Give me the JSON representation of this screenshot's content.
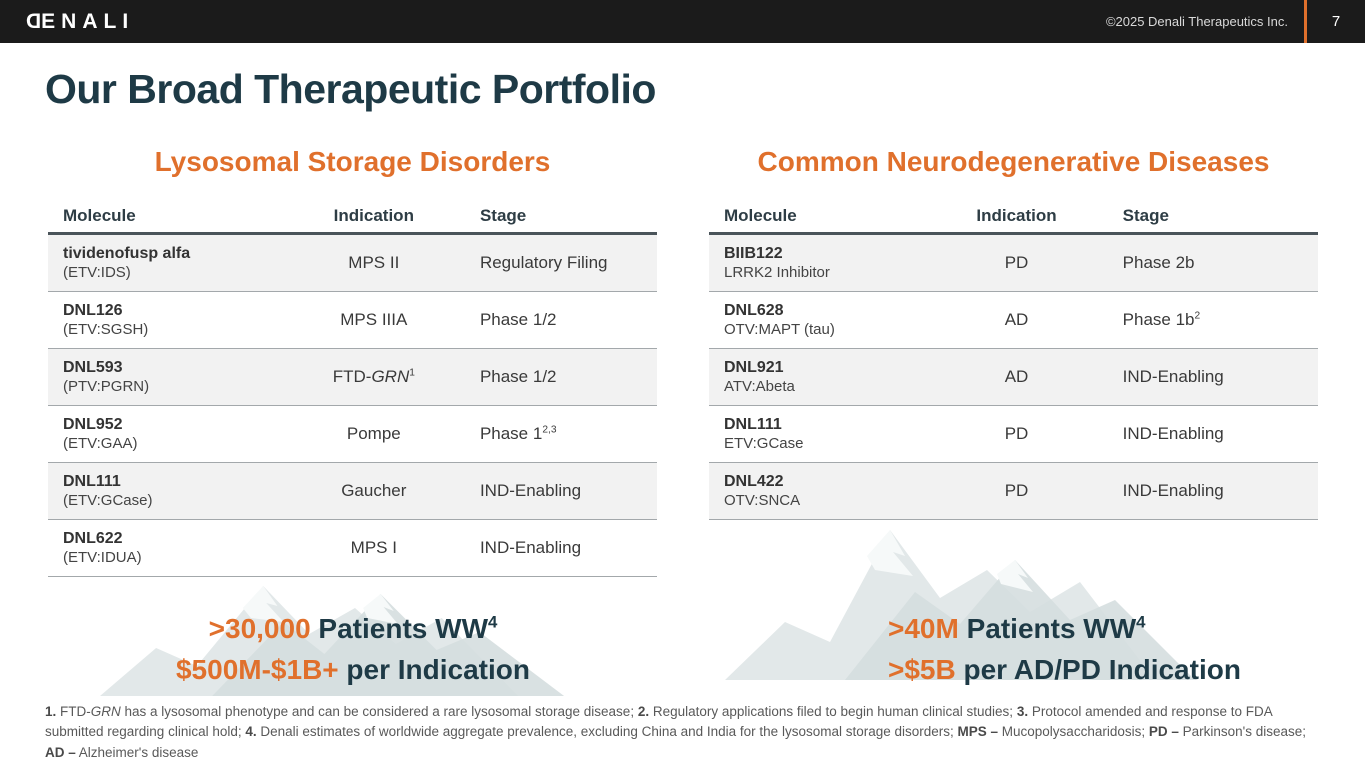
{
  "colors": {
    "accent": "#E0702C",
    "dark_teal": "#1E3A46",
    "topbar": "#1B1B1B",
    "row_alt": "#F2F2F2"
  },
  "header": {
    "logo_first": "D",
    "logo_rest": "ENALI",
    "copyright": "©2025 Denali Therapeutics Inc.",
    "page_number": "7"
  },
  "title": "Our Broad Therapeutic Portfolio",
  "sections": [
    {
      "heading": "Lysosomal Storage Disorders",
      "columns": [
        "Molecule",
        "Indication",
        "Stage"
      ],
      "rows": [
        {
          "name": "tividenofusp alfa",
          "sub": "(ETV:IDS)",
          "indication": [
            {
              "t": "MPS II"
            }
          ],
          "stage": [
            {
              "t": "Regulatory Filing"
            }
          ]
        },
        {
          "name": "DNL126",
          "sub": "(ETV:SGSH)",
          "indication": [
            {
              "t": "MPS IIIA"
            }
          ],
          "stage": [
            {
              "t": "Phase 1/2"
            }
          ]
        },
        {
          "name": "DNL593",
          "sub": "(PTV:PGRN)",
          "indication": [
            {
              "t": "FTD-"
            },
            {
              "t": "GRN",
              "i": true
            },
            {
              "t": "1",
              "sup": true
            }
          ],
          "stage": [
            {
              "t": "Phase 1/2"
            }
          ]
        },
        {
          "name": "DNL952",
          "sub": "(ETV:GAA)",
          "indication": [
            {
              "t": "Pompe"
            }
          ],
          "stage": [
            {
              "t": "Phase 1"
            },
            {
              "t": "2,3",
              "sup": true
            }
          ]
        },
        {
          "name": "DNL111",
          "sub": "(ETV:GCase)",
          "indication": [
            {
              "t": "Gaucher"
            }
          ],
          "stage": [
            {
              "t": "IND-Enabling"
            }
          ]
        },
        {
          "name": "DNL622",
          "sub": "(ETV:IDUA)",
          "indication": [
            {
              "t": "MPS I"
            }
          ],
          "stage": [
            {
              "t": "IND-Enabling"
            }
          ]
        }
      ],
      "stats": [
        {
          "accent": ">30,000",
          "rest": " Patients WW",
          "sup": "4"
        },
        {
          "accent": "$500M-$1B+",
          "rest": " per Indication",
          "sup": ""
        }
      ]
    },
    {
      "heading": "Common Neurodegenerative Diseases",
      "columns": [
        "Molecule",
        "Indication",
        "Stage"
      ],
      "rows": [
        {
          "name": "BIIB122",
          "sub": "LRRK2 Inhibitor",
          "indication": [
            {
              "t": "PD"
            }
          ],
          "stage": [
            {
              "t": "Phase 2b"
            }
          ]
        },
        {
          "name": "DNL628",
          "sub": "OTV:MAPT (tau)",
          "indication": [
            {
              "t": "AD"
            }
          ],
          "stage": [
            {
              "t": "Phase 1b"
            },
            {
              "t": "2",
              "sup": true
            }
          ]
        },
        {
          "name": "DNL921",
          "sub": "ATV:Abeta",
          "indication": [
            {
              "t": "AD"
            }
          ],
          "stage": [
            {
              "t": "IND-Enabling"
            }
          ]
        },
        {
          "name": "DNL111",
          "sub": "ETV:GCase",
          "indication": [
            {
              "t": "PD"
            }
          ],
          "stage": [
            {
              "t": "IND-Enabling"
            }
          ]
        },
        {
          "name": "DNL422",
          "sub": "OTV:SNCA",
          "indication": [
            {
              "t": "PD"
            }
          ],
          "stage": [
            {
              "t": "IND-Enabling"
            }
          ]
        }
      ],
      "stats": [
        {
          "accent": ">40M",
          "rest": " Patients WW",
          "sup": "4"
        },
        {
          "accent": ">$5B",
          "rest": " per AD/PD Indication",
          "sup": ""
        }
      ]
    }
  ],
  "footnotes": [
    {
      "t": "1.",
      "b": true
    },
    {
      "t": " FTD-"
    },
    {
      "t": "GRN",
      "i": true
    },
    {
      "t": " has a lysosomal phenotype and can be considered a rare lysosomal storage disease;  "
    },
    {
      "t": "2.",
      "b": true
    },
    {
      "t": " Regulatory applications filed to begin human clinical studies;  "
    },
    {
      "t": "3.",
      "b": true
    },
    {
      "t": " Protocol amended and response to FDA submitted regarding clinical hold; "
    },
    {
      "t": "4.",
      "b": true
    },
    {
      "t": " Denali estimates of worldwide aggregate prevalence, excluding China and India for the lysosomal storage disorders; "
    },
    {
      "t": "MPS –",
      "b": true
    },
    {
      "t": " Mucopolysaccharidosis; "
    },
    {
      "t": "PD –",
      "b": true
    },
    {
      "t": " Parkinson's disease; "
    },
    {
      "t": "AD –",
      "b": true
    },
    {
      "t": " Alzheimer's disease"
    }
  ]
}
